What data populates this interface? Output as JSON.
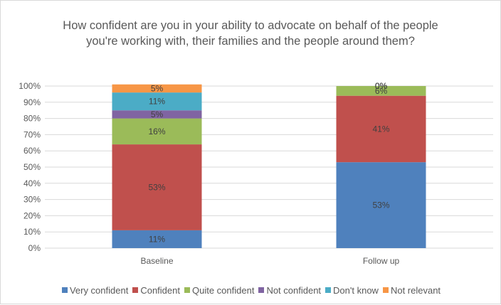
{
  "chart_data": {
    "type": "bar",
    "stacked": true,
    "title": "How confident are you in your ability to advocate on behalf of the people you're working with, their families and the people around them?",
    "categories": [
      "Baseline",
      "Follow up"
    ],
    "ylim": [
      0,
      100
    ],
    "yticks": [
      "0%",
      "10%",
      "20%",
      "30%",
      "40%",
      "50%",
      "60%",
      "70%",
      "80%",
      "90%",
      "100%"
    ],
    "grid": true,
    "legend_position": "bottom",
    "series": [
      {
        "name": "Very confident",
        "color": "#4f81bd",
        "values": [
          11,
          53
        ],
        "labels": [
          "11%",
          "53%"
        ]
      },
      {
        "name": "Confident",
        "color": "#c0504d",
        "values": [
          53,
          41
        ],
        "labels": [
          "53%",
          "41%"
        ]
      },
      {
        "name": "Quite confident",
        "color": "#9bbb59",
        "values": [
          16,
          6
        ],
        "labels": [
          "16%",
          "6%"
        ]
      },
      {
        "name": "Not confident",
        "color": "#8064a2",
        "values": [
          5,
          0
        ],
        "labels": [
          "5%",
          "0%"
        ]
      },
      {
        "name": "Don't know",
        "color": "#4bacc6",
        "values": [
          11,
          0
        ],
        "labels": [
          "11%",
          "0%"
        ]
      },
      {
        "name": "Not relevant",
        "color": "#f79646",
        "values": [
          5,
          0
        ],
        "labels": [
          "5%",
          "0%"
        ]
      }
    ]
  }
}
